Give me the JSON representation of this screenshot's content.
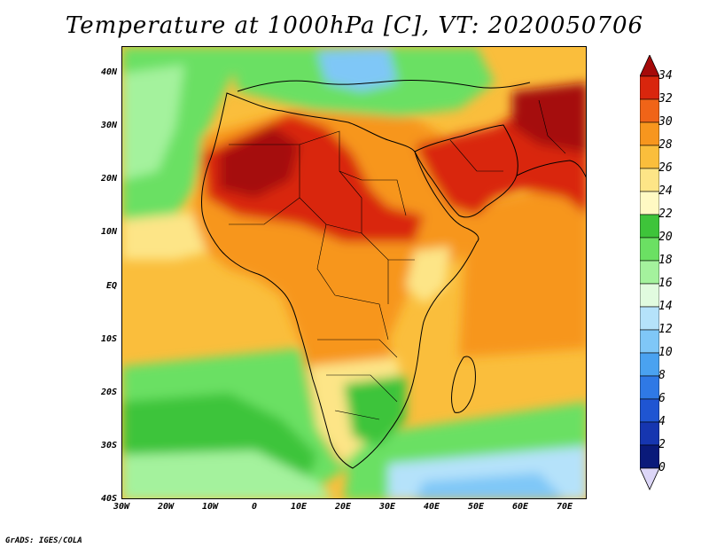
{
  "title": "Temperature at 1000hPa [C], VT: 2020050706",
  "credit": "GrADS: IGES/COLA",
  "map": {
    "projection": "lat-lon",
    "lon_range": [
      -30,
      75
    ],
    "lat_range": [
      -40,
      45
    ],
    "lat_ticks": [
      "40N",
      "30N",
      "20N",
      "10N",
      "EQ",
      "10S",
      "20S",
      "30S",
      "40S"
    ],
    "lat_values": [
      40,
      30,
      20,
      10,
      0,
      -10,
      -20,
      -30,
      -40
    ],
    "lon_ticks": [
      "30W",
      "20W",
      "10W",
      "0",
      "10E",
      "20E",
      "30E",
      "40E",
      "50E",
      "60E",
      "70E"
    ],
    "lon_values": [
      -30,
      -20,
      -10,
      0,
      10,
      20,
      30,
      40,
      50,
      60,
      70
    ]
  },
  "colorbar": {
    "levels": [
      "34",
      "32",
      "30",
      "28",
      "26",
      "24",
      "22",
      "20",
      "18",
      "16",
      "14",
      "12",
      "10",
      "8",
      "6",
      "4",
      "2",
      "0"
    ],
    "colors": [
      "#a50a0a",
      "#d9260d",
      "#f06418",
      "#f7961e",
      "#fabe3c",
      "#fde587",
      "#fff9c3",
      "#3ec43a",
      "#6be063",
      "#a4f29d",
      "#e1fbdf",
      "#b5e2fa",
      "#7fc7f7",
      "#4aa2f0",
      "#2f79e5",
      "#1f55d2",
      "#1636b0",
      "#0a1a7a",
      "#dcd6f7"
    ]
  }
}
